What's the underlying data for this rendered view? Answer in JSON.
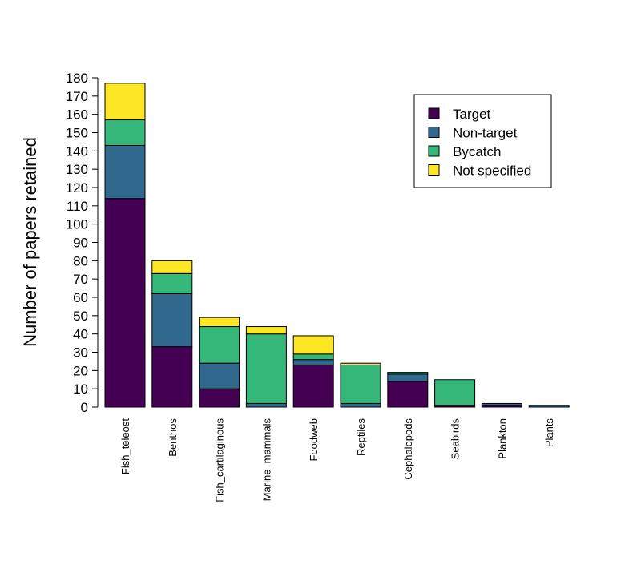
{
  "chart_data": {
    "type": "bar",
    "stacked": true,
    "title": "",
    "xlabel": "",
    "ylabel": "Number of papers retained",
    "ylim": [
      0,
      180
    ],
    "ytick_step": 10,
    "categories": [
      "Fish_teleost",
      "Benthos",
      "Fish_cartilaginous",
      "Marine_mammals",
      "Foodweb",
      "Reptiles",
      "Cephalopods",
      "Seabirds",
      "Plankton",
      "Plants"
    ],
    "series": [
      {
        "name": "Target",
        "color": "#440154",
        "values": [
          114,
          33,
          10,
          0,
          23,
          0,
          14,
          1,
          1,
          0
        ]
      },
      {
        "name": "Non-target",
        "color": "#31688E",
        "values": [
          29,
          29,
          14,
          2,
          3,
          2,
          4,
          0,
          1,
          1
        ]
      },
      {
        "name": "Bycatch",
        "color": "#35B779",
        "values": [
          14,
          11,
          20,
          38,
          3,
          21,
          1,
          14,
          0,
          0
        ]
      },
      {
        "name": "Not specified",
        "color": "#FDE725",
        "values": [
          20,
          7,
          5,
          4,
          10,
          1,
          0,
          0,
          0,
          0
        ]
      }
    ],
    "legend_position": "top-right",
    "grid": false
  }
}
